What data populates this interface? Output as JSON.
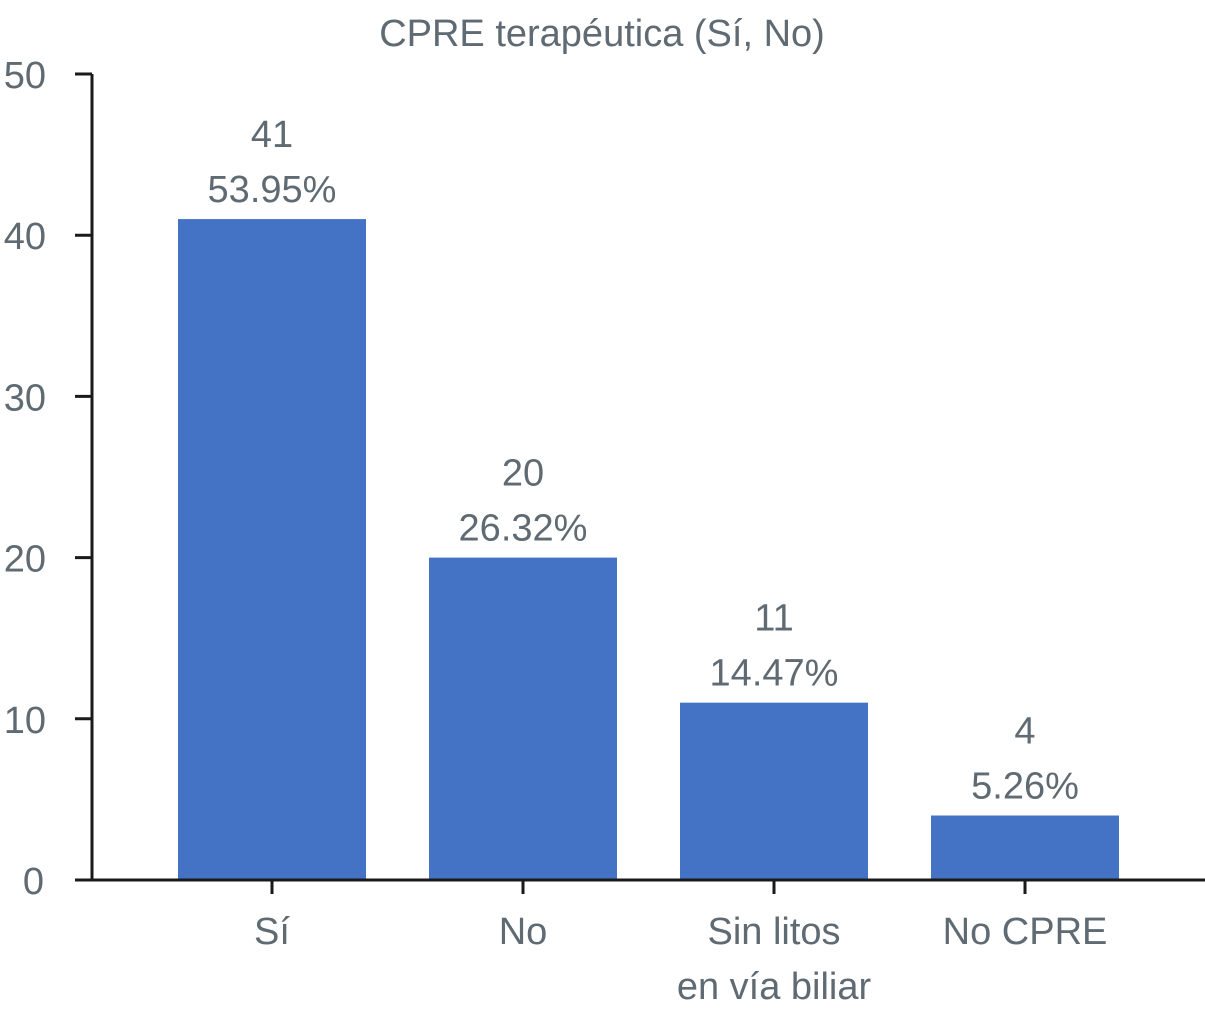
{
  "chart_data": {
    "type": "bar",
    "title": "CPRE terapéutica (Sí, No)",
    "xlabel": "",
    "ylabel": "",
    "categories": [
      [
        "Sí"
      ],
      [
        "No"
      ],
      [
        "Sin litos",
        "en vía biliar"
      ],
      [
        "No CPRE"
      ]
    ],
    "values": [
      41,
      20,
      11,
      4
    ],
    "percent_labels": [
      "53.95%",
      "26.32%",
      "14.47%",
      "5.26%"
    ],
    "ylim": [
      0,
      50
    ],
    "yticks": [
      0,
      10,
      20,
      30,
      40,
      50
    ],
    "grid": false,
    "legend": "none",
    "colors": {
      "bar": "#4472C4",
      "text": "#5f6a72",
      "axis": "#1a1a1a"
    }
  }
}
